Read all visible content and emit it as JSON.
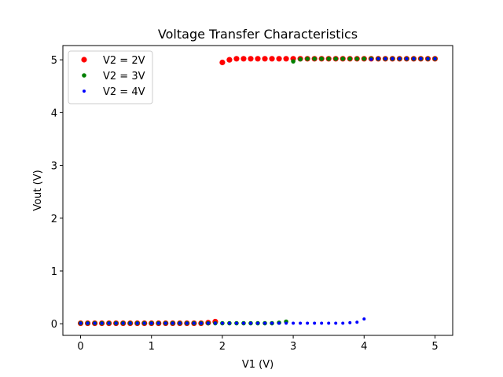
{
  "chart_data": {
    "type": "scatter",
    "title": "Voltage Transfer Characteristics",
    "xlabel": "V1 (V)",
    "ylabel": "Vout (V)",
    "xlim": [
      -0.25,
      5.25
    ],
    "ylim": [
      -0.22,
      5.27
    ],
    "xticks": [
      0,
      1,
      2,
      3,
      4,
      5
    ],
    "yticks": [
      0,
      1,
      2,
      3,
      4,
      5
    ],
    "grid": false,
    "legend_position": "top-left",
    "series": [
      {
        "name": "V2 = 2V",
        "color": "#ff0000",
        "marker_size": "large",
        "x": [
          0.0,
          0.1,
          0.2,
          0.3,
          0.4,
          0.5,
          0.6,
          0.7,
          0.8,
          0.9,
          1.0,
          1.1,
          1.2,
          1.3,
          1.4,
          1.5,
          1.6,
          1.7,
          1.8,
          1.9,
          2.0,
          2.1,
          2.2,
          2.3,
          2.4,
          2.5,
          2.6,
          2.7,
          2.8,
          2.9,
          3.0,
          3.1,
          3.2,
          3.3,
          3.4,
          3.5,
          3.6,
          3.7,
          3.8,
          3.9,
          4.0,
          4.1,
          4.2,
          4.3,
          4.4,
          4.5,
          4.6,
          4.7,
          4.8,
          4.9,
          5.0
        ],
        "y": [
          0.01,
          0.01,
          0.01,
          0.01,
          0.01,
          0.01,
          0.01,
          0.01,
          0.01,
          0.01,
          0.01,
          0.01,
          0.01,
          0.01,
          0.01,
          0.01,
          0.01,
          0.01,
          0.02,
          0.04,
          4.95,
          5.0,
          5.02,
          5.02,
          5.02,
          5.02,
          5.02,
          5.02,
          5.02,
          5.02,
          5.02,
          5.02,
          5.02,
          5.02,
          5.02,
          5.02,
          5.02,
          5.02,
          5.02,
          5.02,
          5.02,
          5.02,
          5.02,
          5.02,
          5.02,
          5.02,
          5.02,
          5.02,
          5.02,
          5.02,
          5.02
        ]
      },
      {
        "name": "V2 = 3V",
        "color": "#008000",
        "marker_size": "medium",
        "x": [
          0.0,
          0.1,
          0.2,
          0.3,
          0.4,
          0.5,
          0.6,
          0.7,
          0.8,
          0.9,
          1.0,
          1.1,
          1.2,
          1.3,
          1.4,
          1.5,
          1.6,
          1.7,
          1.8,
          1.9,
          2.0,
          2.1,
          2.2,
          2.3,
          2.4,
          2.5,
          2.6,
          2.7,
          2.8,
          2.9,
          3.0,
          3.1,
          3.2,
          3.3,
          3.4,
          3.5,
          3.6,
          3.7,
          3.8,
          3.9,
          4.0,
          4.1,
          4.2,
          4.3,
          4.4,
          4.5,
          4.6,
          4.7,
          4.8,
          4.9,
          5.0
        ],
        "y": [
          0.01,
          0.01,
          0.01,
          0.01,
          0.01,
          0.01,
          0.01,
          0.01,
          0.01,
          0.01,
          0.01,
          0.01,
          0.01,
          0.01,
          0.01,
          0.01,
          0.01,
          0.01,
          0.01,
          0.01,
          0.01,
          0.01,
          0.01,
          0.01,
          0.01,
          0.01,
          0.01,
          0.01,
          0.02,
          0.04,
          4.97,
          5.01,
          5.02,
          5.02,
          5.02,
          5.02,
          5.02,
          5.02,
          5.02,
          5.02,
          5.02,
          5.02,
          5.02,
          5.02,
          5.02,
          5.02,
          5.02,
          5.02,
          5.02,
          5.02,
          5.02
        ]
      },
      {
        "name": "V2 = 4V",
        "color": "#0000ff",
        "marker_size": "small",
        "x": [
          0.0,
          0.1,
          0.2,
          0.3,
          0.4,
          0.5,
          0.6,
          0.7,
          0.8,
          0.9,
          1.0,
          1.1,
          1.2,
          1.3,
          1.4,
          1.5,
          1.6,
          1.7,
          1.8,
          1.9,
          2.0,
          2.1,
          2.2,
          2.3,
          2.4,
          2.5,
          2.6,
          2.7,
          2.8,
          2.9,
          3.0,
          3.1,
          3.2,
          3.3,
          3.4,
          3.5,
          3.6,
          3.7,
          3.8,
          3.9,
          4.0,
          4.1,
          4.2,
          4.3,
          4.4,
          4.5,
          4.6,
          4.7,
          4.8,
          4.9,
          5.0
        ],
        "y": [
          0.01,
          0.01,
          0.01,
          0.01,
          0.01,
          0.01,
          0.01,
          0.01,
          0.01,
          0.01,
          0.01,
          0.01,
          0.01,
          0.01,
          0.01,
          0.01,
          0.01,
          0.01,
          0.01,
          0.01,
          0.01,
          0.01,
          0.01,
          0.01,
          0.01,
          0.01,
          0.01,
          0.01,
          0.01,
          0.01,
          0.01,
          0.01,
          0.01,
          0.01,
          0.01,
          0.01,
          0.01,
          0.01,
          0.02,
          0.03,
          0.09,
          5.01,
          5.02,
          5.02,
          5.02,
          5.02,
          5.02,
          5.02,
          5.02,
          5.02,
          5.02
        ]
      }
    ]
  }
}
